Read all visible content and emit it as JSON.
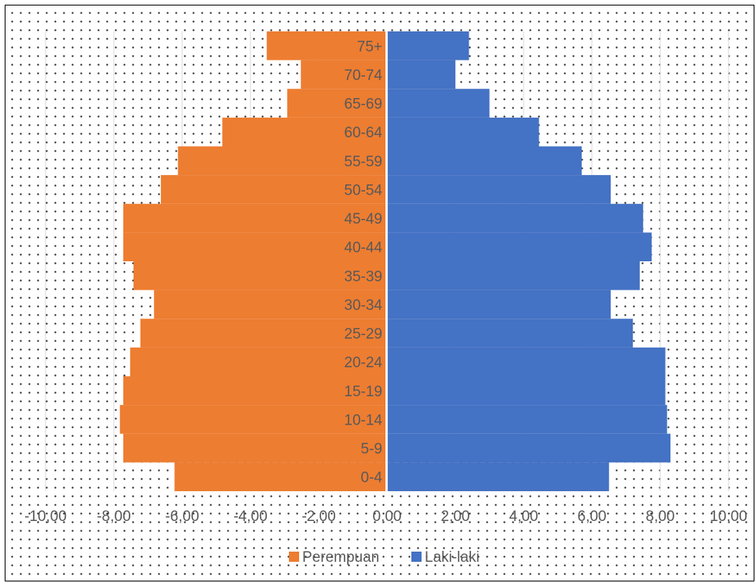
{
  "chart_data": {
    "type": "bar",
    "orientation": "horizontal",
    "style": "population-pyramid",
    "categories": [
      "0-4",
      "5-9",
      "10-14",
      "15-19",
      "20-24",
      "25-29",
      "30-34",
      "35-39",
      "40-44",
      "45-49",
      "50-54",
      "55-59",
      "60-64",
      "65-69",
      "70-74",
      "75+"
    ],
    "series": [
      {
        "name": "Perempuan",
        "color": "#ED7D31",
        "values": [
          -6.2,
          -7.7,
          -7.8,
          -7.7,
          -7.5,
          -7.2,
          -6.8,
          -7.4,
          -7.7,
          -7.7,
          -6.6,
          -6.1,
          -4.8,
          -2.9,
          -2.5,
          -3.5
        ]
      },
      {
        "name": "Laki-laki",
        "color": "#4472C4",
        "values": [
          6.5,
          8.3,
          8.2,
          8.15,
          8.15,
          7.2,
          6.55,
          7.4,
          7.75,
          7.5,
          6.55,
          5.7,
          4.45,
          3.0,
          2.0,
          2.4
        ]
      }
    ],
    "xlim": [
      -10,
      10
    ],
    "xticks": [
      -10,
      -8,
      -6,
      -4,
      -2,
      0,
      2,
      4,
      6,
      8,
      10
    ],
    "xtick_labels": [
      "-10,00",
      "-8,00",
      "-6,00",
      "-4,00",
      "-2,00",
      "0,00",
      "2,00",
      "4,00",
      "6,00",
      "8,00",
      "10,00"
    ],
    "gridlines": "vertical",
    "legend": "bottom",
    "title": "",
    "xlabel": "",
    "ylabel": ""
  }
}
